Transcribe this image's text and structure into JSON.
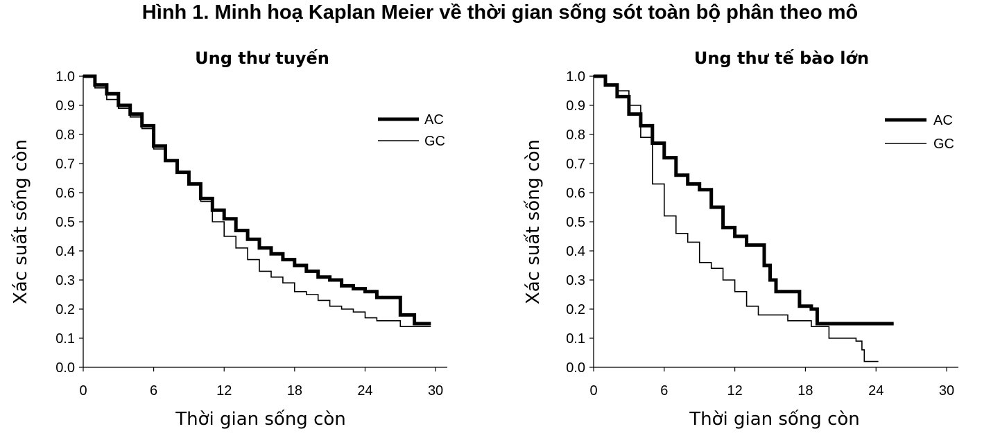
{
  "figure_title": "Hình 1. Minh hoạ Kaplan Meier về thời gian sống sót toàn bộ phân theo mô",
  "chart_data": [
    {
      "type": "line",
      "title": "Ung thư tuyến",
      "xlabel": "Thời gian sống còn",
      "ylabel": "Xác suất sống còn",
      "xlim": [
        0,
        31
      ],
      "ylim": [
        0,
        1
      ],
      "x_ticks": [
        0,
        6,
        12,
        18,
        24,
        30
      ],
      "y_ticks": [
        0.0,
        0.1,
        0.2,
        0.3,
        0.4,
        0.5,
        0.6,
        0.7,
        0.8,
        0.9,
        1.0
      ],
      "y_tick_labels": [
        "0.0",
        "0.1",
        "0.2",
        "0.3",
        "0.4",
        "0.5",
        "0.6",
        "0.7",
        "0.8",
        "0.9",
        "1.0"
      ],
      "legend_position": "top-right",
      "series": [
        {
          "name": "AC",
          "style": "thick",
          "points": [
            [
              0,
              1.0
            ],
            [
              1,
              0.97
            ],
            [
              2,
              0.94
            ],
            [
              3,
              0.9
            ],
            [
              4,
              0.87
            ],
            [
              5,
              0.83
            ],
            [
              6,
              0.76
            ],
            [
              7,
              0.71
            ],
            [
              8,
              0.67
            ],
            [
              9,
              0.63
            ],
            [
              10,
              0.58
            ],
            [
              11,
              0.54
            ],
            [
              12,
              0.51
            ],
            [
              13,
              0.47
            ],
            [
              14,
              0.44
            ],
            [
              15,
              0.41
            ],
            [
              16,
              0.39
            ],
            [
              17,
              0.37
            ],
            [
              18,
              0.35
            ],
            [
              19,
              0.33
            ],
            [
              20,
              0.31
            ],
            [
              21,
              0.3
            ],
            [
              22,
              0.28
            ],
            [
              23,
              0.27
            ],
            [
              24,
              0.26
            ],
            [
              25,
              0.24
            ],
            [
              26.5,
              0.24
            ],
            [
              27,
              0.18
            ],
            [
              28,
              0.18
            ],
            [
              28.2,
              0.15
            ],
            [
              29.6,
              0.15
            ]
          ]
        },
        {
          "name": "GC",
          "style": "thin",
          "points": [
            [
              0,
              1.0
            ],
            [
              1,
              0.96
            ],
            [
              2,
              0.92
            ],
            [
              3,
              0.89
            ],
            [
              4,
              0.86
            ],
            [
              5,
              0.82
            ],
            [
              6,
              0.75
            ],
            [
              7,
              0.71
            ],
            [
              8,
              0.67
            ],
            [
              9,
              0.63
            ],
            [
              10,
              0.57
            ],
            [
              11,
              0.5
            ],
            [
              12,
              0.45
            ],
            [
              13,
              0.41
            ],
            [
              14,
              0.37
            ],
            [
              15,
              0.33
            ],
            [
              16,
              0.31
            ],
            [
              17,
              0.29
            ],
            [
              18,
              0.26
            ],
            [
              19,
              0.25
            ],
            [
              20,
              0.23
            ],
            [
              21,
              0.21
            ],
            [
              22,
              0.2
            ],
            [
              23,
              0.19
            ],
            [
              24,
              0.17
            ],
            [
              25,
              0.16
            ],
            [
              26,
              0.16
            ],
            [
              27,
              0.14
            ],
            [
              29.6,
              0.14
            ]
          ]
        }
      ]
    },
    {
      "type": "line",
      "title": "Ung thư tế bào lớn",
      "xlabel": "Thời gian sống còn",
      "ylabel": "Xác suất sống còn",
      "xlim": [
        0,
        31
      ],
      "ylim": [
        0,
        1
      ],
      "x_ticks": [
        0,
        6,
        12,
        18,
        24,
        30
      ],
      "y_ticks": [
        0.0,
        0.1,
        0.2,
        0.3,
        0.4,
        0.5,
        0.6,
        0.7,
        0.8,
        0.9,
        1.0
      ],
      "y_tick_labels": [
        "0.0",
        "0.1",
        "0.2",
        "0.3",
        "0.4",
        "0.5",
        "0.6",
        "0.7",
        "0.8",
        "0.9",
        "1.0"
      ],
      "legend_position": "top-right",
      "series": [
        {
          "name": "AC",
          "style": "thick",
          "points": [
            [
              0,
              1.0
            ],
            [
              1,
              0.97
            ],
            [
              2,
              0.93
            ],
            [
              3,
              0.87
            ],
            [
              4,
              0.83
            ],
            [
              5,
              0.77
            ],
            [
              6,
              0.72
            ],
            [
              7,
              0.66
            ],
            [
              8,
              0.63
            ],
            [
              9,
              0.61
            ],
            [
              10,
              0.55
            ],
            [
              11,
              0.48
            ],
            [
              12,
              0.45
            ],
            [
              13,
              0.42
            ],
            [
              14,
              0.42
            ],
            [
              14.5,
              0.35
            ],
            [
              15,
              0.3
            ],
            [
              15.5,
              0.26
            ],
            [
              17,
              0.26
            ],
            [
              17.5,
              0.21
            ],
            [
              18.5,
              0.2
            ],
            [
              19,
              0.15
            ],
            [
              25.5,
              0.15
            ]
          ]
        },
        {
          "name": "GC",
          "style": "thin",
          "points": [
            [
              0,
              1.0
            ],
            [
              1,
              0.97
            ],
            [
              2,
              0.95
            ],
            [
              3,
              0.9
            ],
            [
              4,
              0.79
            ],
            [
              5,
              0.63
            ],
            [
              6,
              0.52
            ],
            [
              7,
              0.46
            ],
            [
              8,
              0.43
            ],
            [
              9,
              0.36
            ],
            [
              10,
              0.34
            ],
            [
              11,
              0.3
            ],
            [
              12,
              0.26
            ],
            [
              13,
              0.21
            ],
            [
              14,
              0.18
            ],
            [
              16,
              0.18
            ],
            [
              16.5,
              0.16
            ],
            [
              18,
              0.16
            ],
            [
              18.5,
              0.14
            ],
            [
              19,
              0.14
            ],
            [
              20,
              0.1
            ],
            [
              22,
              0.1
            ],
            [
              22.3,
              0.09
            ],
            [
              22.8,
              0.06
            ],
            [
              23,
              0.02
            ],
            [
              24.2,
              0.02
            ]
          ]
        }
      ]
    }
  ]
}
